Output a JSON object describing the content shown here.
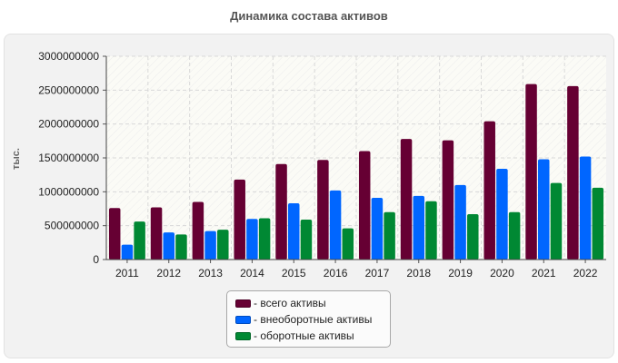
{
  "chart_data": {
    "type": "bar",
    "title": "Динамика состава активов",
    "ylabel": "тыс.",
    "xlabel": "",
    "categories": [
      "2011",
      "2012",
      "2013",
      "2014",
      "2015",
      "2016",
      "2017",
      "2018",
      "2019",
      "2020",
      "2021",
      "2022"
    ],
    "ylim": [
      0,
      3000000000
    ],
    "yticks": [
      0,
      500000000,
      1000000000,
      1500000000,
      2000000000,
      2500000000,
      3000000000
    ],
    "ytick_labels": [
      "0",
      "500000000",
      "1000000000",
      "1500000000",
      "2000000000",
      "2500000000",
      "3000000000"
    ],
    "grid": true,
    "legend_position": "bottom",
    "series": [
      {
        "name": "- всего активы",
        "color": "#660033",
        "values": [
          760000000,
          770000000,
          850000000,
          1180000000,
          1410000000,
          1470000000,
          1600000000,
          1780000000,
          1760000000,
          2040000000,
          2590000000,
          2560000000
        ]
      },
      {
        "name": "- внеоборотные активы",
        "color": "#0066ff",
        "values": [
          220000000,
          400000000,
          420000000,
          600000000,
          830000000,
          1020000000,
          910000000,
          940000000,
          1100000000,
          1340000000,
          1480000000,
          1520000000
        ]
      },
      {
        "name": "- оборотные активы",
        "color": "#008833",
        "values": [
          560000000,
          370000000,
          440000000,
          610000000,
          590000000,
          460000000,
          700000000,
          860000000,
          670000000,
          700000000,
          1130000000,
          1060000000
        ]
      }
    ]
  }
}
